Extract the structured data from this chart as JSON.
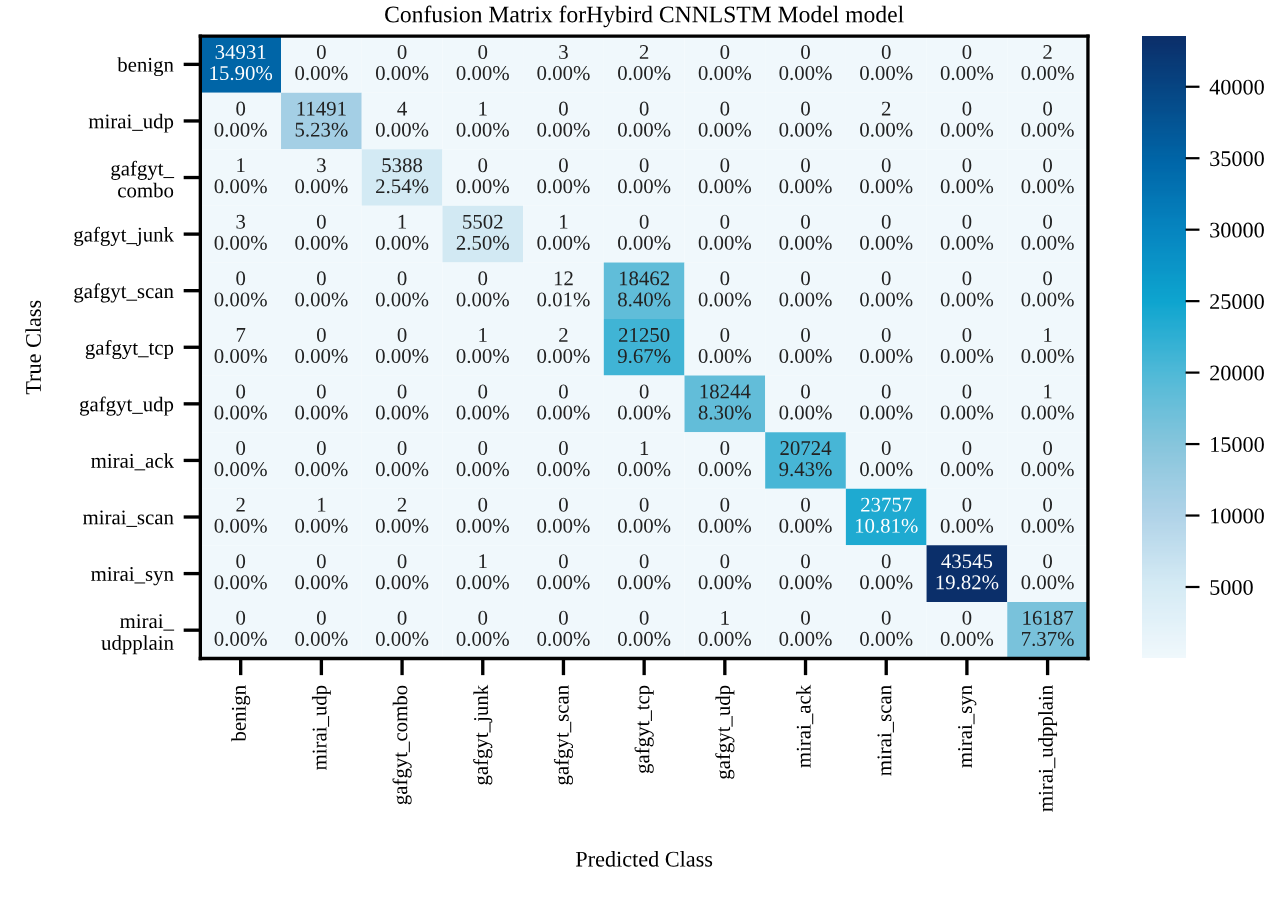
{
  "chart_data": {
    "type": "heatmap",
    "title": "Confusion Matrix forHybird CNNLSTM Model model",
    "xlabel": "Predicted Class",
    "ylabel": "True Class",
    "categories": [
      "benign",
      "mirai_udp",
      "gafgyt_combo",
      "gafgyt_junk",
      "gafgyt_scan",
      "gafgyt_tcp",
      "gafgyt_udp",
      "mirai_ack",
      "mirai_scan",
      "mirai_syn",
      "mirai_udpplain"
    ],
    "y_categories": [
      "benign",
      "mirai_udp",
      "gafgyt_\ncombo",
      "gafgyt_junk",
      "gafgyt_scan",
      "gafgyt_tcp",
      "gafgyt_udp",
      "mirai_ack",
      "mirai_scan",
      "mirai_syn",
      "mirai_\nudpplain"
    ],
    "cells": [
      [
        34931,
        0,
        0,
        0,
        3,
        2,
        0,
        0,
        0,
        0,
        2
      ],
      [
        0,
        11491,
        4,
        1,
        0,
        0,
        0,
        0,
        2,
        0,
        0
      ],
      [
        1,
        3,
        5388,
        0,
        0,
        0,
        0,
        0,
        0,
        0,
        0
      ],
      [
        3,
        0,
        1,
        5502,
        1,
        0,
        0,
        0,
        0,
        0,
        0
      ],
      [
        0,
        0,
        0,
        0,
        12,
        18462,
        0,
        0,
        0,
        0,
        0
      ],
      [
        7,
        0,
        0,
        1,
        2,
        21250,
        0,
        0,
        0,
        0,
        1
      ],
      [
        0,
        0,
        0,
        0,
        0,
        0,
        18244,
        0,
        0,
        0,
        1
      ],
      [
        0,
        0,
        0,
        0,
        0,
        1,
        0,
        20724,
        0,
        0,
        0
      ],
      [
        2,
        1,
        2,
        0,
        0,
        0,
        0,
        0,
        23757,
        0,
        0
      ],
      [
        0,
        0,
        0,
        1,
        0,
        0,
        0,
        0,
        0,
        43545,
        0
      ],
      [
        0,
        0,
        0,
        0,
        0,
        0,
        1,
        0,
        0,
        0,
        16187
      ]
    ],
    "cell_labels": [
      [
        "34931\n15.90%",
        "0\n0.00%",
        "0\n0.00%",
        "0\n0.00%",
        "3\n0.00%",
        "2\n0.00%",
        "0\n0.00%",
        "0\n0.00%",
        "0\n0.00%",
        "0\n0.00%",
        "2\n0.00%"
      ],
      [
        "0\n0.00%",
        "11491\n5.23%",
        "4\n0.00%",
        "1\n0.00%",
        "0\n0.00%",
        "0\n0.00%",
        "0\n0.00%",
        "0\n0.00%",
        "2\n0.00%",
        "0\n0.00%",
        "0\n0.00%"
      ],
      [
        "1\n0.00%",
        "3\n0.00%",
        "5388\n2.54%",
        "0\n0.00%",
        "0\n0.00%",
        "0\n0.00%",
        "0\n0.00%",
        "0\n0.00%",
        "0\n0.00%",
        "0\n0.00%",
        "0\n0.00%"
      ],
      [
        "3\n0.00%",
        "0\n0.00%",
        "1\n0.00%",
        "5502\n2.50%",
        "1\n0.00%",
        "0\n0.00%",
        "0\n0.00%",
        "0\n0.00%",
        "0\n0.00%",
        "0\n0.00%",
        "0\n0.00%"
      ],
      [
        "0\n0.00%",
        "0\n0.00%",
        "0\n0.00%",
        "0\n0.00%",
        "12\n0.01%",
        "18462\n8.40%",
        "0\n0.00%",
        "0\n0.00%",
        "0\n0.00%",
        "0\n0.00%",
        "0\n0.00%"
      ],
      [
        "7\n0.00%",
        "0\n0.00%",
        "0\n0.00%",
        "1\n0.00%",
        "2\n0.00%",
        "21250\n9.67%",
        "0\n0.00%",
        "0\n0.00%",
        "0\n0.00%",
        "0\n0.00%",
        "1\n0.00%"
      ],
      [
        "0\n0.00%",
        "0\n0.00%",
        "0\n0.00%",
        "0\n0.00%",
        "0\n0.00%",
        "0\n0.00%",
        "18244\n8.30%",
        "0\n0.00%",
        "0\n0.00%",
        "0\n0.00%",
        "1\n0.00%"
      ],
      [
        "0\n0.00%",
        "0\n0.00%",
        "0\n0.00%",
        "0\n0.00%",
        "0\n0.00%",
        "1\n0.00%",
        "0\n0.00%",
        "20724\n9.43%",
        "0\n0.00%",
        "0\n0.00%",
        "0\n0.00%"
      ],
      [
        "2\n0.00%",
        "1\n0.00%",
        "2\n0.00%",
        "0\n0.00%",
        "0\n0.00%",
        "0\n0.00%",
        "0\n0.00%",
        "0\n0.00%",
        "23757\n10.81%",
        "0\n0.00%",
        "0\n0.00%"
      ],
      [
        "0\n0.00%",
        "0\n0.00%",
        "0\n0.00%",
        "1\n0.00%",
        "0\n0.00%",
        "0\n0.00%",
        "0\n0.00%",
        "0\n0.00%",
        "0\n0.00%",
        "43545\n19.82%",
        "0\n0.00%"
      ],
      [
        "0\n0.00%",
        "0\n0.00%",
        "0\n0.00%",
        "0\n0.00%",
        "0\n0.00%",
        "0\n0.00%",
        "1\n0.00%",
        "0\n0.00%",
        "0\n0.00%",
        "0\n0.00%",
        "16187\n7.37%"
      ]
    ],
    "clim": [
      0,
      43545
    ],
    "cticks": [
      5000,
      10000,
      15000,
      20000,
      25000,
      30000,
      35000,
      40000
    ]
  }
}
